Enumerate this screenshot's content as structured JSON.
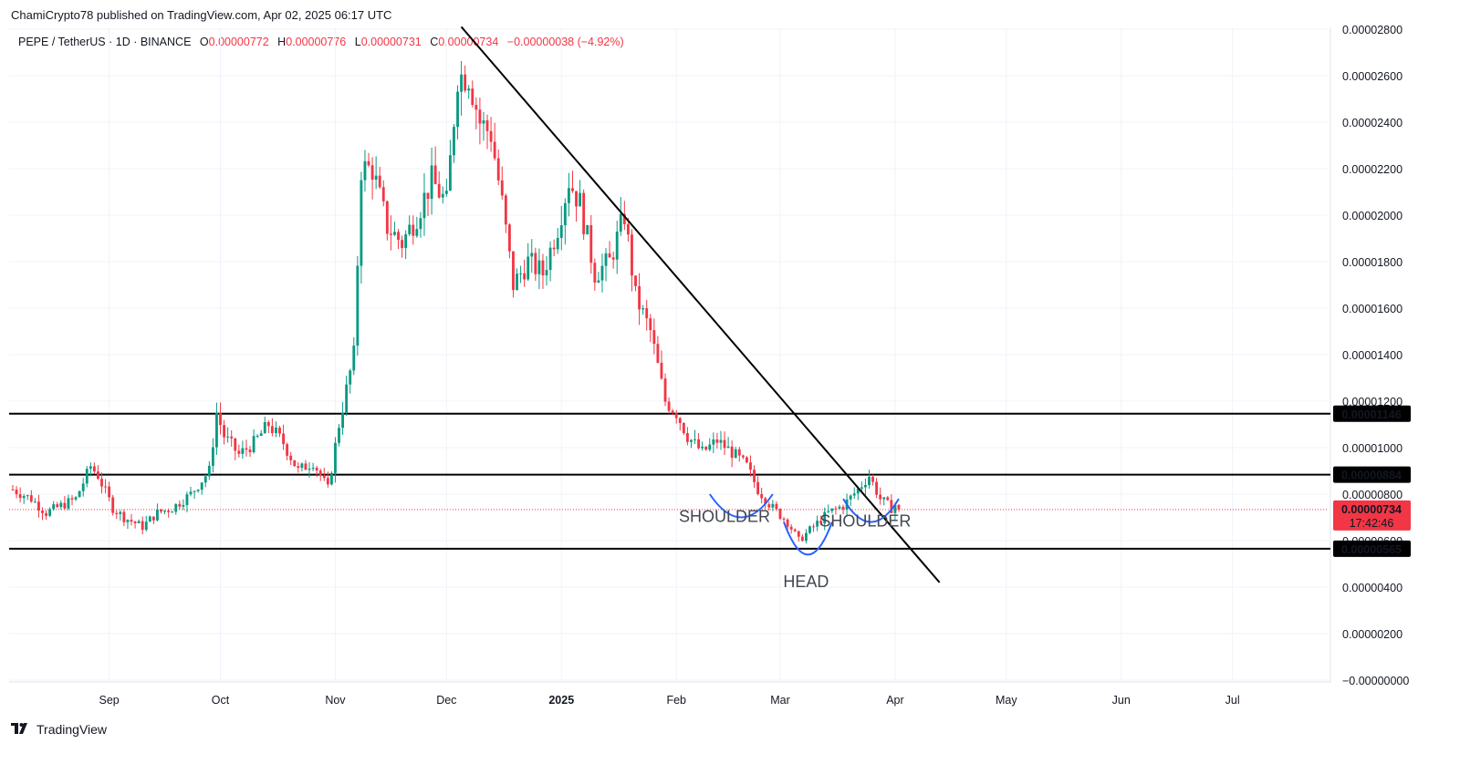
{
  "header": {
    "published_line": "ChamiCrypto78 published on TradingView.com, Apr 02, 2025 06:17 UTC"
  },
  "ohlc": {
    "symbol": "PEPE / TetherUS · 1D · BINANCE",
    "o_label": "O",
    "o_value": "0.00000772",
    "h_label": "H",
    "h_value": "0.00000776",
    "l_label": "L",
    "l_value": "0.00000731",
    "c_label": "C",
    "c_value": "0.00000734",
    "change": "−0.00000038 (−4.92%)"
  },
  "footer": {
    "brand": "TradingView"
  },
  "colors": {
    "up": "#089981",
    "down": "#f23645",
    "annot_arc": "#2962ff"
  },
  "chart_data": {
    "type": "candlestick",
    "title": "",
    "xlabel": "",
    "ylabel": "",
    "ylim": [
      0,
      2.8e-05
    ],
    "y_ticks": [
      "0.00002800",
      "0.00002600",
      "0.00002400",
      "0.00002200",
      "0.00002000",
      "0.00001800",
      "0.00001600",
      "0.00001400",
      "0.00001200",
      "0.00001000",
      "0.00000800",
      "0.00000600",
      "0.00000400",
      "0.00000200",
      "−0.00000000"
    ],
    "y_tick_values": [
      2.8e-05,
      2.6e-05,
      2.4e-05,
      2.2e-05,
      2e-05,
      1.8e-05,
      1.6e-05,
      1.4e-05,
      1.2e-05,
      1e-05,
      8e-06,
      6e-06,
      4e-06,
      2e-06,
      0
    ],
    "x_ticks": [
      "Sep",
      "Oct",
      "Nov",
      "Dec",
      "2025",
      "Feb",
      "Mar",
      "Apr",
      "May",
      "Jun",
      "Jul"
    ],
    "x_tick_days": [
      31,
      61,
      92,
      122,
      153,
      184,
      212,
      243,
      273,
      304,
      334
    ],
    "x_range_days": [
      5,
      356
    ],
    "levels": [
      {
        "label": "0.00001146",
        "value": 1.146e-05,
        "style": "dark"
      },
      {
        "label": "0.00000884",
        "value": 8.84e-06,
        "style": "dark"
      },
      {
        "label": "0.00000565",
        "value": 5.65e-06,
        "style": "dark"
      }
    ],
    "current_price": {
      "label": "0.00000734",
      "value": 7.34e-06,
      "countdown": "17:42:46"
    },
    "trendline": {
      "start_day": 126,
      "start_value": 2.81e-05,
      "end_day": 255,
      "end_value": 4.2e-06
    },
    "annotations": [
      {
        "text": "SHOULDER",
        "day": 197,
        "value": 6.8e-06
      },
      {
        "text": "HEAD",
        "day": 219,
        "value": 4e-06
      },
      {
        "text": "SHOULDER",
        "day": 235,
        "value": 6.6e-06
      }
    ],
    "arcs": [
      {
        "from_day": 193,
        "to_day": 210,
        "top_value": 8e-06,
        "bottom_value": 7e-06
      },
      {
        "from_day": 213,
        "to_day": 226,
        "top_value": 6.8e-06,
        "bottom_value": 5.4e-06
      },
      {
        "from_day": 229,
        "to_day": 244,
        "top_value": 7.8e-06,
        "bottom_value": 6.8e-06
      }
    ],
    "anchors": [
      [
        5,
        8.2e-06
      ],
      [
        10,
        7.8e-06
      ],
      [
        14,
        7.2e-06
      ],
      [
        18,
        7.5e-06
      ],
      [
        22,
        7.8e-06
      ],
      [
        26,
        9.2e-06
      ],
      [
        28,
        8.8e-06
      ],
      [
        32,
        7.4e-06
      ],
      [
        35,
        7e-06
      ],
      [
        40,
        6.6e-06
      ],
      [
        44,
        7.2e-06
      ],
      [
        48,
        7.4e-06
      ],
      [
        53,
        8e-06
      ],
      [
        58,
        9e-06
      ],
      [
        60,
        1.15e-05
      ],
      [
        62,
        1.05e-05
      ],
      [
        66,
        9.7e-06
      ],
      [
        70,
        1.02e-05
      ],
      [
        74,
        1.1e-05
      ],
      [
        78,
        1.02e-05
      ],
      [
        82,
        9e-06
      ],
      [
        86,
        9.4e-06
      ],
      [
        90,
        8.2e-06
      ],
      [
        93,
        1.1e-05
      ],
      [
        95,
        1.25e-05
      ],
      [
        97,
        1.4e-05
      ],
      [
        99,
        2.2e-05
      ],
      [
        102,
        2.2e-05
      ],
      [
        106,
        1.95e-05
      ],
      [
        110,
        1.88e-05
      ],
      [
        114,
        2e-05
      ],
      [
        118,
        2.15e-05
      ],
      [
        122,
        2.05e-05
      ],
      [
        125,
        2.6e-05
      ],
      [
        128,
        2.6e-05
      ],
      [
        131,
        2.4e-05
      ],
      [
        134,
        2.35e-05
      ],
      [
        137,
        2.05e-05
      ],
      [
        140,
        1.7e-05
      ],
      [
        144,
        1.8e-05
      ],
      [
        148,
        1.75e-05
      ],
      [
        152,
        1.95e-05
      ],
      [
        155,
        2.15e-05
      ],
      [
        158,
        2.05e-05
      ],
      [
        162,
        1.75e-05
      ],
      [
        166,
        1.8e-05
      ],
      [
        170,
        2e-05
      ],
      [
        173,
        1.65e-05
      ],
      [
        177,
        1.5e-05
      ],
      [
        181,
        1.2e-05
      ],
      [
        184,
        1.15e-05
      ],
      [
        187,
        1.05e-05
      ],
      [
        191,
        9.8e-06
      ],
      [
        195,
        1.03e-05
      ],
      [
        199,
        9.8e-06
      ],
      [
        203,
        9.2e-06
      ],
      [
        206,
        8.2e-06
      ],
      [
        210,
        7.4e-06
      ],
      [
        214,
        6.8e-06
      ],
      [
        217,
        6e-06
      ],
      [
        221,
        6.6e-06
      ],
      [
        225,
        7.2e-06
      ],
      [
        229,
        7.5e-06
      ],
      [
        233,
        8.2e-06
      ],
      [
        236,
        8.8e-06
      ],
      [
        239,
        7.8e-06
      ],
      [
        242,
        7.4e-06
      ],
      [
        244,
        7.7e-06
      ]
    ]
  }
}
